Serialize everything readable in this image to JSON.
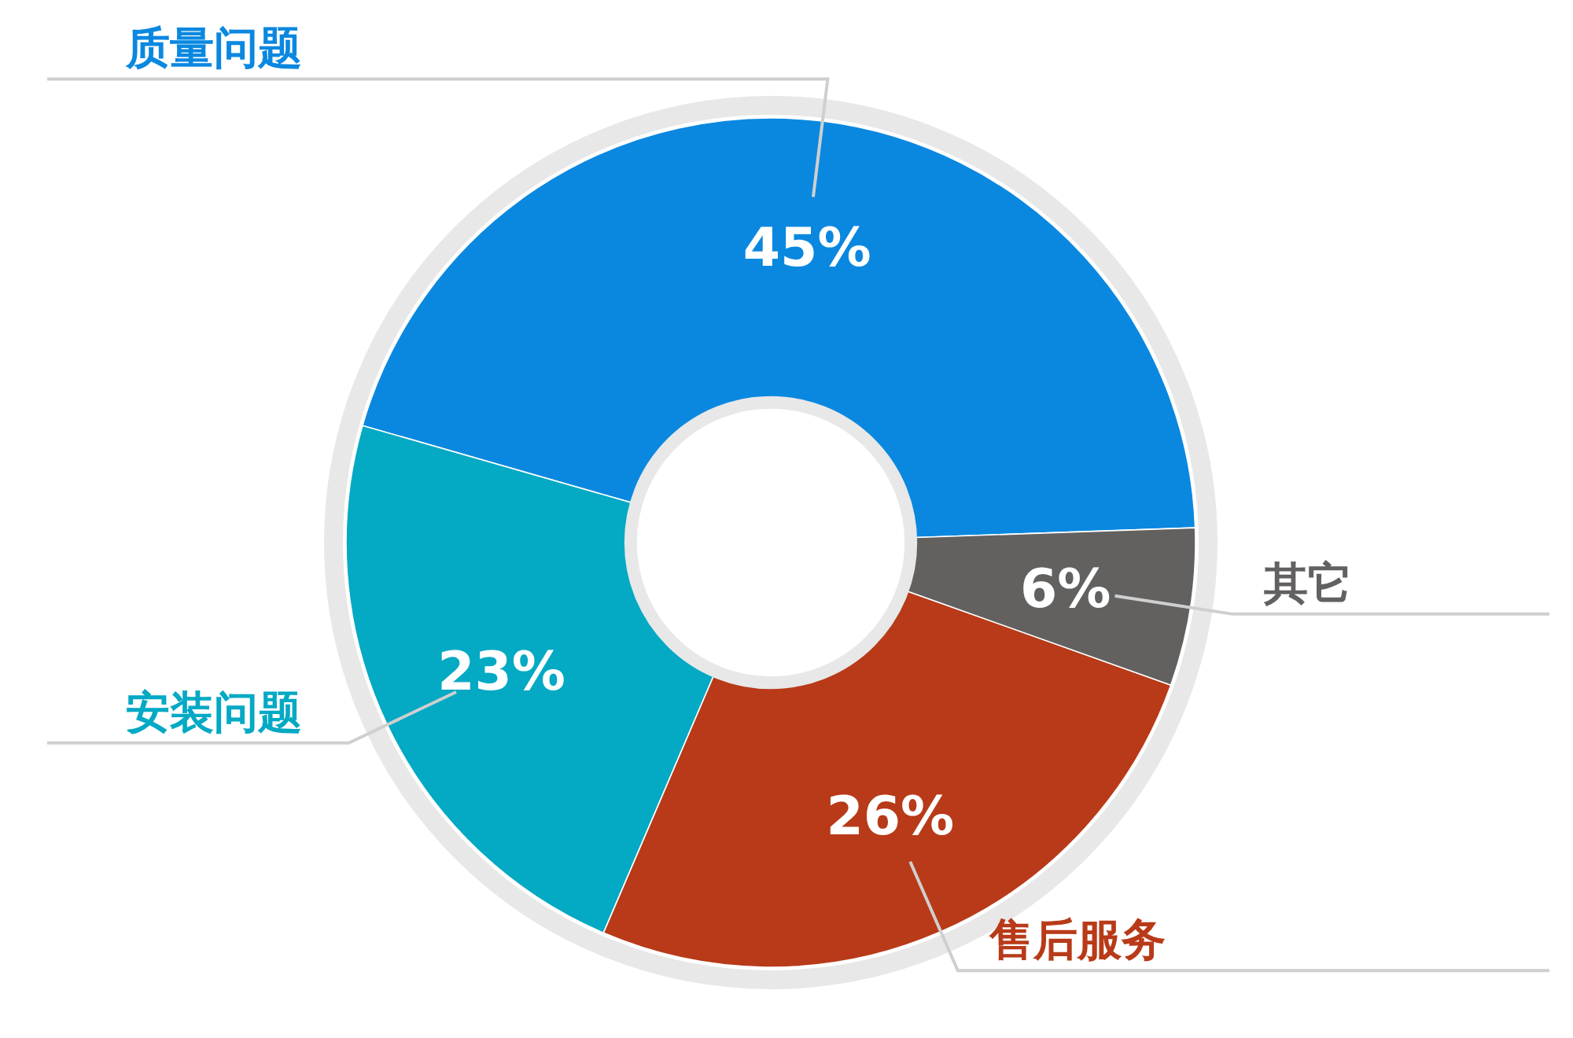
{
  "chart_data": {
    "type": "donut",
    "categories": [
      "质量问题",
      "安装问题",
      "售后服务",
      "其它"
    ],
    "values": [
      45,
      23,
      26,
      6
    ],
    "colors": [
      "#0a88e0",
      "#04a9c4",
      "#b83a18",
      "#636160"
    ],
    "value_labels": [
      "45%",
      "23%",
      "26%",
      "6%"
    ]
  }
}
